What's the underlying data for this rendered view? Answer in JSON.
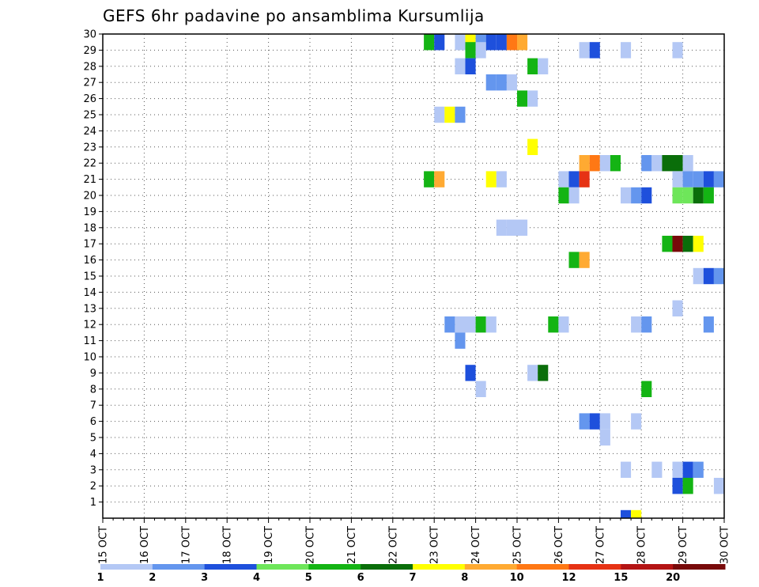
{
  "chart_data": {
    "type": "heatmap",
    "title": "GEFS 6hr padavine po ansamblima Kursumlija",
    "xlabel": "",
    "ylabel": "",
    "x_tick_labels": [
      "15 OCT",
      "16 OCT",
      "17 OCT",
      "18 OCT",
      "19 OCT",
      "20 OCT",
      "21 OCT",
      "22 OCT",
      "23 OCT",
      "24 OCT",
      "25 OCT",
      "26 OCT",
      "27 OCT",
      "28 OCT",
      "29 OCT",
      "30 OCT"
    ],
    "x_range_days": [
      0,
      15
    ],
    "y_tick_labels": [
      "1",
      "2",
      "3",
      "4",
      "5",
      "6",
      "7",
      "8",
      "9",
      "10",
      "11",
      "12",
      "13",
      "14",
      "15",
      "16",
      "17",
      "18",
      "19",
      "20",
      "21",
      "22",
      "23",
      "24",
      "25",
      "26",
      "27",
      "28",
      "29",
      "30"
    ],
    "y_range": [
      0,
      30
    ],
    "grid": true,
    "step_hours": 6,
    "legend": {
      "position": "bottom",
      "labels": [
        "1",
        "2",
        "3",
        "4",
        "5",
        "6",
        "7",
        "8",
        "10",
        "12",
        "15",
        "20"
      ],
      "colors": [
        "#b4c8f5",
        "#6496ee",
        "#1e50dc",
        "#6ee65a",
        "#14b414",
        "#0a6e0a",
        "#ffff00",
        "#ffaa32",
        "#ff7814",
        "#e63214",
        "#b41414",
        "#780a0a"
      ]
    },
    "cells": [
      {
        "member": 30,
        "day_offset": 7.75,
        "class": 5
      },
      {
        "member": 30,
        "day_offset": 8.0,
        "class": 3
      },
      {
        "member": 30,
        "day_offset": 8.5,
        "class": 1
      },
      {
        "member": 30,
        "day_offset": 8.75,
        "class": 7
      },
      {
        "member": 30,
        "day_offset": 9.0,
        "class": 2
      },
      {
        "member": 30,
        "day_offset": 9.25,
        "class": 3
      },
      {
        "member": 30,
        "day_offset": 9.5,
        "class": 3
      },
      {
        "member": 30,
        "day_offset": 9.75,
        "class": 9
      },
      {
        "member": 30,
        "day_offset": 10.0,
        "class": 8
      },
      {
        "member": 29,
        "day_offset": 8.75,
        "class": 5
      },
      {
        "member": 29,
        "day_offset": 9.0,
        "class": 1
      },
      {
        "member": 29,
        "day_offset": 11.5,
        "class": 1
      },
      {
        "member": 29,
        "day_offset": 11.75,
        "class": 3
      },
      {
        "member": 29,
        "day_offset": 12.5,
        "class": 1
      },
      {
        "member": 29,
        "day_offset": 13.75,
        "class": 1
      },
      {
        "member": 28,
        "day_offset": 8.5,
        "class": 1
      },
      {
        "member": 28,
        "day_offset": 8.75,
        "class": 3
      },
      {
        "member": 28,
        "day_offset": 10.25,
        "class": 5
      },
      {
        "member": 28,
        "day_offset": 10.5,
        "class": 1
      },
      {
        "member": 27,
        "day_offset": 9.25,
        "class": 2
      },
      {
        "member": 27,
        "day_offset": 9.5,
        "class": 2
      },
      {
        "member": 27,
        "day_offset": 9.75,
        "class": 1
      },
      {
        "member": 26,
        "day_offset": 10.0,
        "class": 5
      },
      {
        "member": 26,
        "day_offset": 10.25,
        "class": 1
      },
      {
        "member": 25,
        "day_offset": 8.0,
        "class": 1
      },
      {
        "member": 25,
        "day_offset": 8.25,
        "class": 7
      },
      {
        "member": 25,
        "day_offset": 8.5,
        "class": 2
      },
      {
        "member": 23,
        "day_offset": 10.25,
        "class": 7
      },
      {
        "member": 22,
        "day_offset": 11.5,
        "class": 8
      },
      {
        "member": 22,
        "day_offset": 11.75,
        "class": 9
      },
      {
        "member": 22,
        "day_offset": 12.0,
        "class": 1
      },
      {
        "member": 22,
        "day_offset": 12.25,
        "class": 5
      },
      {
        "member": 22,
        "day_offset": 13.0,
        "class": 2
      },
      {
        "member": 22,
        "day_offset": 13.25,
        "class": 1
      },
      {
        "member": 22,
        "day_offset": 13.5,
        "class": 6
      },
      {
        "member": 22,
        "day_offset": 13.75,
        "class": 6
      },
      {
        "member": 22,
        "day_offset": 14.0,
        "class": 1
      },
      {
        "member": 21,
        "day_offset": 7.75,
        "class": 5
      },
      {
        "member": 21,
        "day_offset": 8.0,
        "class": 8
      },
      {
        "member": 21,
        "day_offset": 9.25,
        "class": 7
      },
      {
        "member": 21,
        "day_offset": 9.5,
        "class": 1
      },
      {
        "member": 21,
        "day_offset": 11.0,
        "class": 1
      },
      {
        "member": 21,
        "day_offset": 11.25,
        "class": 3
      },
      {
        "member": 21,
        "day_offset": 11.5,
        "class": 10
      },
      {
        "member": 21,
        "day_offset": 13.75,
        "class": 1
      },
      {
        "member": 21,
        "day_offset": 14.0,
        "class": 2
      },
      {
        "member": 21,
        "day_offset": 14.25,
        "class": 2
      },
      {
        "member": 21,
        "day_offset": 14.5,
        "class": 3
      },
      {
        "member": 21,
        "day_offset": 14.75,
        "class": 2
      },
      {
        "member": 20,
        "day_offset": 11.0,
        "class": 5
      },
      {
        "member": 20,
        "day_offset": 11.25,
        "class": 1
      },
      {
        "member": 20,
        "day_offset": 12.5,
        "class": 1
      },
      {
        "member": 20,
        "day_offset": 12.75,
        "class": 2
      },
      {
        "member": 20,
        "day_offset": 13.0,
        "class": 3
      },
      {
        "member": 20,
        "day_offset": 13.75,
        "class": 4
      },
      {
        "member": 20,
        "day_offset": 14.0,
        "class": 4
      },
      {
        "member": 20,
        "day_offset": 14.25,
        "class": 6
      },
      {
        "member": 20,
        "day_offset": 14.5,
        "class": 5
      },
      {
        "member": 18,
        "day_offset": 9.5,
        "class": 1
      },
      {
        "member": 18,
        "day_offset": 9.75,
        "class": 1
      },
      {
        "member": 18,
        "day_offset": 10.0,
        "class": 1
      },
      {
        "member": 17,
        "day_offset": 13.5,
        "class": 5
      },
      {
        "member": 17,
        "day_offset": 13.75,
        "class": 12
      },
      {
        "member": 17,
        "day_offset": 14.0,
        "class": 6
      },
      {
        "member": 17,
        "day_offset": 14.25,
        "class": 7
      },
      {
        "member": 16,
        "day_offset": 11.25,
        "class": 5
      },
      {
        "member": 16,
        "day_offset": 11.5,
        "class": 8
      },
      {
        "member": 15,
        "day_offset": 14.25,
        "class": 1
      },
      {
        "member": 15,
        "day_offset": 14.5,
        "class": 3
      },
      {
        "member": 15,
        "day_offset": 14.75,
        "class": 2
      },
      {
        "member": 13,
        "day_offset": 13.75,
        "class": 1
      },
      {
        "member": 12,
        "day_offset": 8.25,
        "class": 2
      },
      {
        "member": 12,
        "day_offset": 8.5,
        "class": 1
      },
      {
        "member": 12,
        "day_offset": 8.75,
        "class": 1
      },
      {
        "member": 12,
        "day_offset": 9.0,
        "class": 5
      },
      {
        "member": 12,
        "day_offset": 9.25,
        "class": 1
      },
      {
        "member": 12,
        "day_offset": 10.75,
        "class": 5
      },
      {
        "member": 12,
        "day_offset": 11.0,
        "class": 1
      },
      {
        "member": 12,
        "day_offset": 12.75,
        "class": 1
      },
      {
        "member": 12,
        "day_offset": 13.0,
        "class": 2
      },
      {
        "member": 12,
        "day_offset": 14.5,
        "class": 2
      },
      {
        "member": 11,
        "day_offset": 8.5,
        "class": 2
      },
      {
        "member": 9,
        "day_offset": 8.75,
        "class": 3
      },
      {
        "member": 9,
        "day_offset": 10.25,
        "class": 1
      },
      {
        "member": 9,
        "day_offset": 10.5,
        "class": 6
      },
      {
        "member": 8,
        "day_offset": 9.0,
        "class": 1
      },
      {
        "member": 8,
        "day_offset": 13.0,
        "class": 5
      },
      {
        "member": 6,
        "day_offset": 11.5,
        "class": 2
      },
      {
        "member": 6,
        "day_offset": 11.75,
        "class": 3
      },
      {
        "member": 6,
        "day_offset": 12.0,
        "class": 1
      },
      {
        "member": 6,
        "day_offset": 12.75,
        "class": 1
      },
      {
        "member": 5,
        "day_offset": 12.0,
        "class": 1
      },
      {
        "member": 3,
        "day_offset": 12.5,
        "class": 1
      },
      {
        "member": 3,
        "day_offset": 13.25,
        "class": 1
      },
      {
        "member": 3,
        "day_offset": 13.75,
        "class": 1
      },
      {
        "member": 3,
        "day_offset": 14.0,
        "class": 3
      },
      {
        "member": 3,
        "day_offset": 14.25,
        "class": 2
      },
      {
        "member": 2,
        "day_offset": 13.75,
        "class": 3
      },
      {
        "member": 2,
        "day_offset": 14.0,
        "class": 5
      },
      {
        "member": 2,
        "day_offset": 14.75,
        "class": 1
      },
      {
        "member": 0,
        "day_offset": 12.5,
        "class": 3
      },
      {
        "member": 0,
        "day_offset": 12.75,
        "class": 7
      }
    ]
  }
}
